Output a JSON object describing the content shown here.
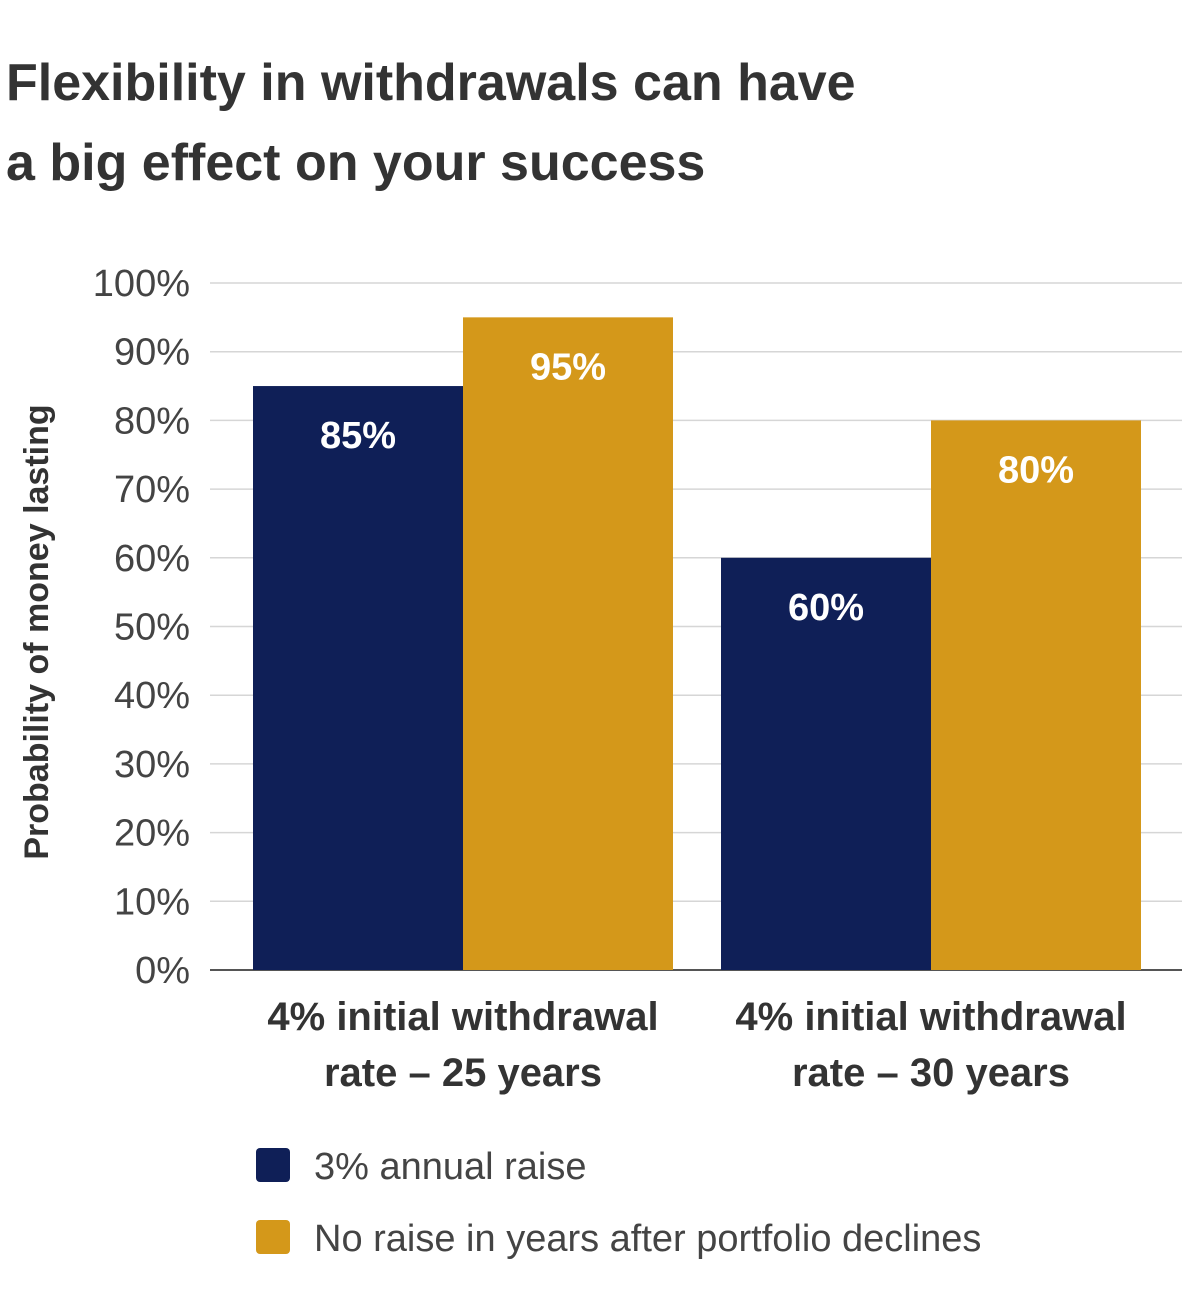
{
  "chart_data": {
    "type": "bar",
    "title_lines": [
      "Flexibility in withdrawals can have",
      "a big effect on your success"
    ],
    "xlabel": "",
    "ylabel": "Probability of money lasting",
    "ylim": [
      0,
      100
    ],
    "yticks": [
      "0%",
      "10%",
      "20%",
      "30%",
      "40%",
      "50%",
      "60%",
      "70%",
      "80%",
      "90%",
      "100%"
    ],
    "categories": [
      [
        "4% initial withdrawal",
        "rate – 25 years"
      ],
      [
        "4% initial withdrawal",
        "rate – 30 years"
      ]
    ],
    "series": [
      {
        "name": "3% annual raise",
        "color": "#0f1f57",
        "values": [
          85,
          60
        ],
        "labels": [
          "85%",
          "60%"
        ]
      },
      {
        "name": "No raise in years after portfolio declines",
        "color": "#d4981a",
        "values": [
          95,
          80
        ],
        "labels": [
          "95%",
          "80%"
        ]
      }
    ],
    "grid": true,
    "legend_position": "bottom-left"
  }
}
